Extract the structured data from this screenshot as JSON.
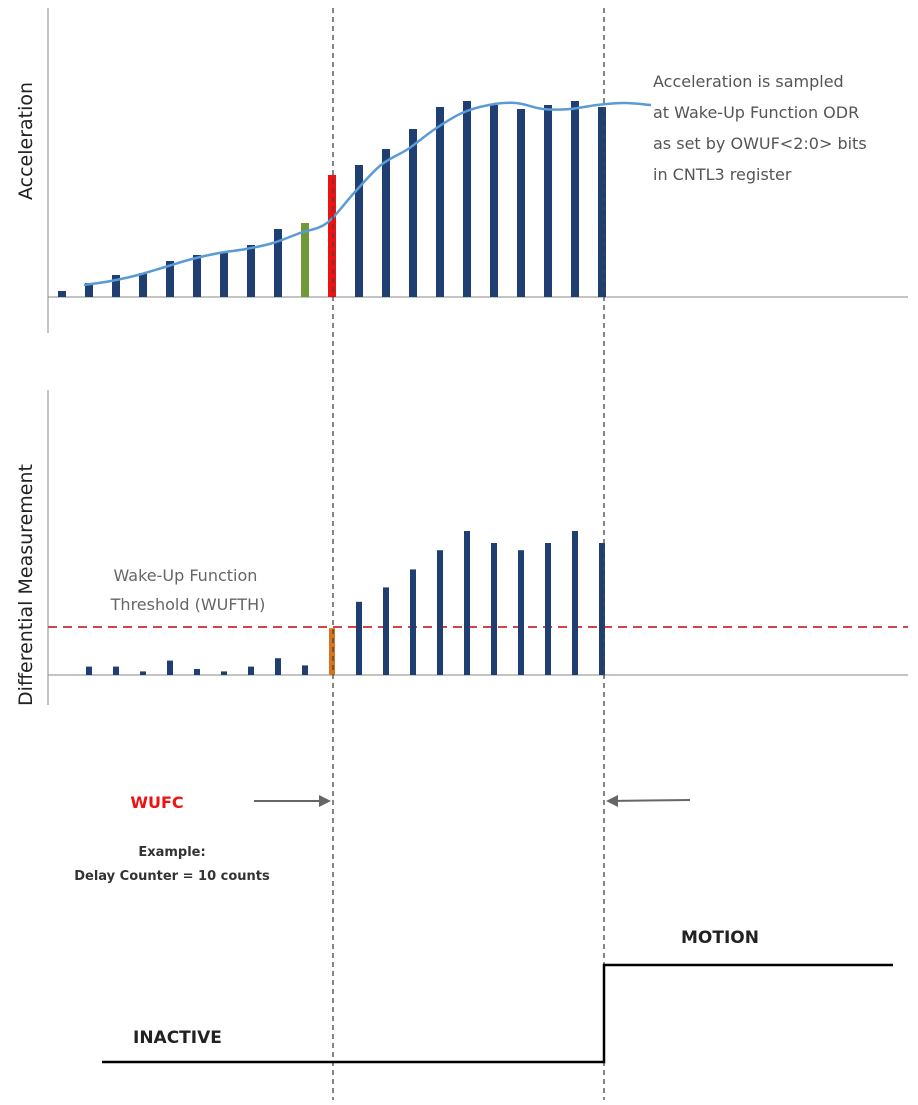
{
  "acceleration_panel": {
    "axis_title": "Acceleration",
    "note_lines": [
      "Acceleration is sampled",
      "at Wake-Up Function ODR",
      "as set by OWUF<2:0> bits",
      "in CNTL3 register"
    ]
  },
  "differential_panel": {
    "axis_title": "Differential Measurement",
    "threshold_label_lines": [
      "Wake-Up Function",
      "Threshold (WUFTH)"
    ]
  },
  "timing": {
    "counter_name": "WUFC",
    "example_title": "Example:",
    "example_text": "Delay Counter = 10 counts"
  },
  "states": {
    "inactive": "INACTIVE",
    "motion": "MOTION"
  },
  "colors": {
    "bar": "#1f3f73",
    "curve": "#5b9bd5",
    "green_bar": "#6e9a3a",
    "red_bar": "#ee1111",
    "orange_bar": "#d9741c",
    "threshold": "#d04444",
    "wufc_label": "#ee1111"
  },
  "chart_data": [
    {
      "type": "bar",
      "name": "acceleration",
      "values": [
        3,
        7,
        11,
        12,
        18,
        21,
        22,
        26,
        34,
        37,
        61,
        66,
        74,
        84,
        95,
        98,
        96,
        94,
        96,
        98,
        95
      ],
      "highlights": {
        "9": "green",
        "10": "red"
      },
      "curve": [
        6,
        8,
        11,
        15,
        19,
        22,
        24,
        27,
        32,
        37,
        52,
        66,
        74,
        84,
        92,
        96,
        97,
        94,
        94,
        96,
        97,
        96
      ],
      "ylim": [
        0,
        120
      ]
    },
    {
      "type": "bar",
      "name": "differential",
      "values": [
        0,
        7,
        7,
        3,
        12,
        5,
        3,
        7,
        14,
        8,
        39,
        61,
        73,
        88,
        104,
        120,
        110,
        104,
        110,
        120,
        110
      ],
      "highlights": {
        "10": "orange"
      },
      "threshold": 40,
      "ylim": [
        0,
        130
      ]
    }
  ]
}
